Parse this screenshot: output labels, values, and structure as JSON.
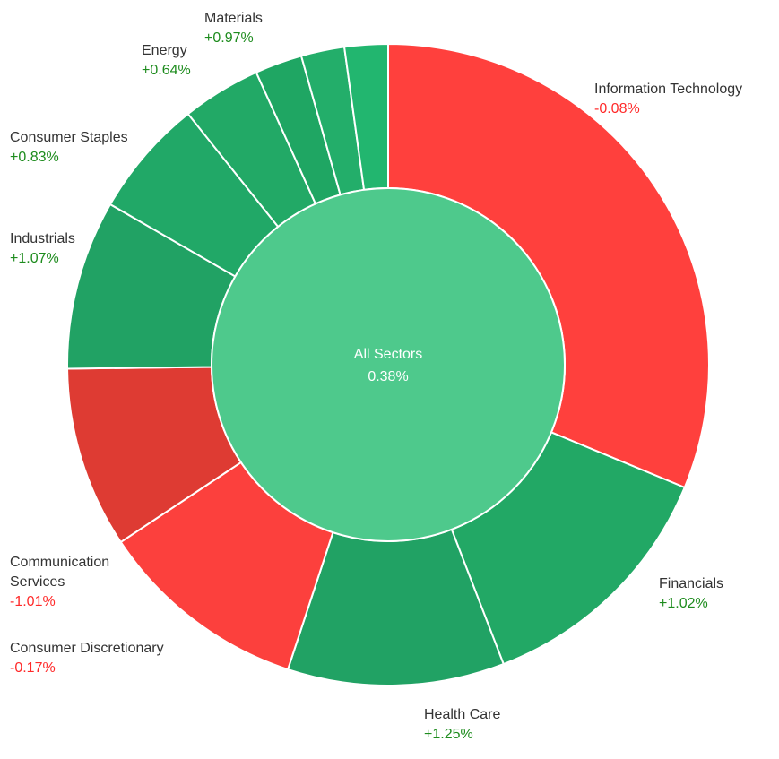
{
  "chart_data": {
    "type": "pie",
    "variant": "sunburst",
    "center": {
      "name": "All Sectors",
      "value_label": "0.38%",
      "color": "#4ec98c"
    },
    "positive_label_color": "#1e8c1e",
    "negative_label_color": "#ff2a2a",
    "sectors": [
      {
        "name_lines": [
          "Information Technology"
        ],
        "change_label": "-0.08%",
        "change": -0.08,
        "weight": 31.5,
        "color": "#ff403d"
      },
      {
        "name_lines": [
          "Financials"
        ],
        "change_label": "+1.02%",
        "change": 1.02,
        "weight": 13.0,
        "color": "#22a865"
      },
      {
        "name_lines": [
          "Health Care"
        ],
        "change_label": "+1.25%",
        "change": 1.25,
        "weight": 11.0,
        "color": "#21a264"
      },
      {
        "name_lines": [
          "Consumer Discretionary"
        ],
        "change_label": "-0.17%",
        "change": -0.17,
        "weight": 10.7,
        "color": "#fc403d"
      },
      {
        "name_lines": [
          "Communication",
          "Services"
        ],
        "change_label": "-1.01%",
        "change": -1.01,
        "weight": 9.2,
        "color": "#de3b33"
      },
      {
        "name_lines": [
          "Industrials"
        ],
        "change_label": "+1.07%",
        "change": 1.07,
        "weight": 8.6,
        "color": "#21a264"
      },
      {
        "name_lines": [
          "Consumer Staples"
        ],
        "change_label": "+0.83%",
        "change": 0.83,
        "weight": 6.0,
        "color": "#21a867"
      },
      {
        "name_lines": [
          "Energy"
        ],
        "change_label": "+0.64%",
        "change": 0.64,
        "weight": 4.0,
        "color": "#22a966"
      },
      {
        "name_lines": [],
        "change_label": "",
        "weight": 2.4,
        "color": "#1fa663"
      },
      {
        "name_lines": [],
        "change_label": "",
        "weight": 2.2,
        "color": "#23ae6a"
      },
      {
        "name_lines": [
          "Materials"
        ],
        "change_label": "+0.97%",
        "change": 0.97,
        "weight": 2.2,
        "color": "#22b66f"
      }
    ]
  }
}
